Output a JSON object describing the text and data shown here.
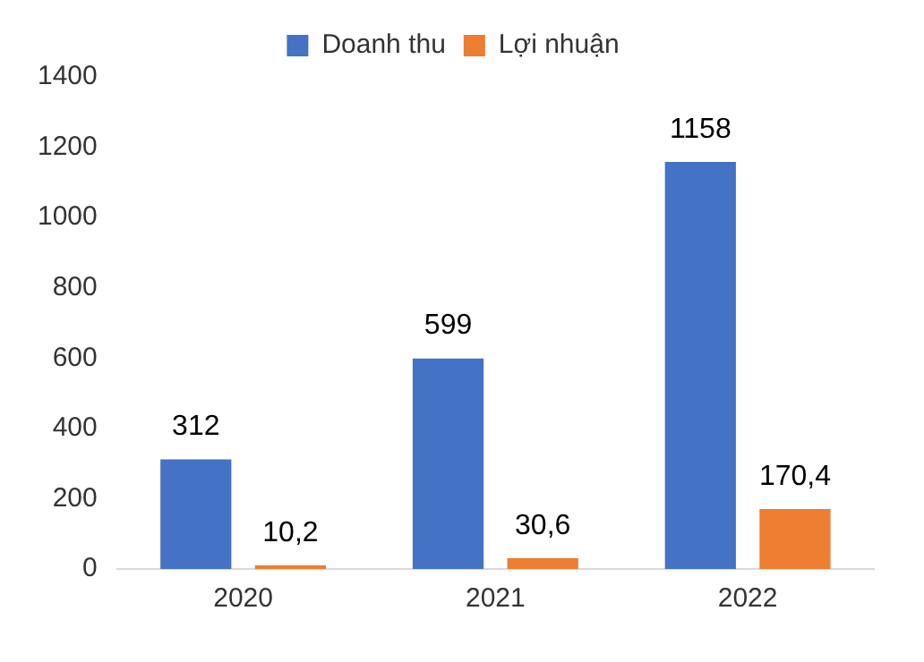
{
  "chart_data": {
    "type": "bar",
    "categories": [
      "2020",
      "2021",
      "2022"
    ],
    "series": [
      {
        "name": "Doanh thu",
        "color": "#4472c4",
        "values": [
          312,
          599,
          1158
        ],
        "value_labels": [
          "312",
          "599",
          "1158"
        ]
      },
      {
        "name": "Lợi nhuận",
        "color": "#ed7d31",
        "values": [
          10.2,
          30.6,
          170.4
        ],
        "value_labels": [
          "10,2",
          "30,6",
          "170,4"
        ]
      }
    ],
    "ylim": [
      0,
      1400
    ],
    "yticks": [
      0,
      200,
      400,
      600,
      800,
      1000,
      1200,
      1400
    ],
    "grid": false,
    "legend": "top"
  }
}
